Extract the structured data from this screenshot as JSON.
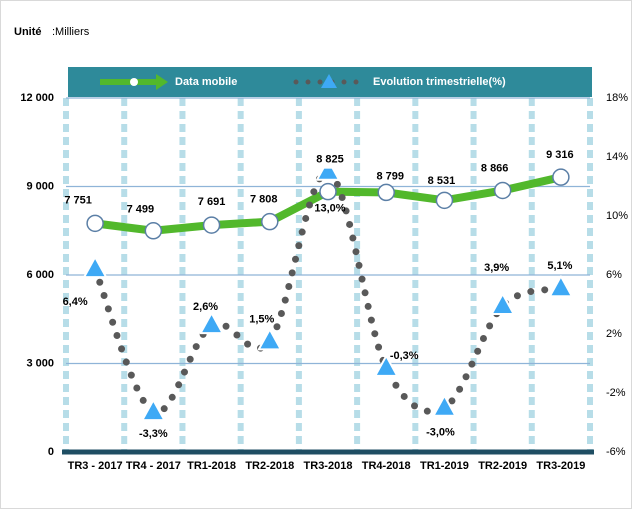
{
  "chart_data": {
    "type": "line",
    "unit_label": "Unité",
    "unit_text": ":Milliers",
    "categories": [
      "TR3 - 2017",
      "TR4 - 2017",
      "TR1-2018",
      "TR2-2018",
      "TR3-2018",
      "TR4-2018",
      "TR1-2019",
      "TR2-2019",
      "TR3-2019"
    ],
    "series": [
      {
        "name": "Data mobile",
        "color": "#52b82c",
        "values": [
          7751,
          7499,
          7691,
          7808,
          8825,
          8799,
          8531,
          8866,
          9316
        ],
        "value_labels": [
          "7 751",
          "7 499",
          "7 691",
          "7 808",
          "8 825",
          "8 799",
          "8 531",
          "8 866",
          "9 316"
        ]
      },
      {
        "name": "Evolution trimestrielle(%)",
        "color": "#3ea9f5",
        "axis": "y2",
        "values": [
          6.4,
          -3.3,
          2.6,
          1.5,
          13.0,
          -0.3,
          -3.0,
          3.9,
          5.1
        ],
        "value_labels": [
          "6,4%",
          "-3,3%",
          "2,6%",
          "1,5%",
          "13,0%",
          "-0,3%",
          "-3,0%",
          "3,9%",
          "5,1%"
        ]
      }
    ],
    "ylim": [
      0,
      12000
    ],
    "yticks": [
      0,
      {
        "value": 3000,
        "label": "3 000"
      },
      {
        "value": 6000,
        "label": "6 000"
      },
      {
        "value": 9000,
        "label": "9 000"
      },
      {
        "value": 12000,
        "label": "12 000"
      }
    ],
    "y2lim": [
      -6,
      18
    ],
    "y2ticks": [
      {
        "value": -6,
        "label": "-6%"
      },
      {
        "value": -2,
        "label": "-2%"
      },
      {
        "value": 2,
        "label": "2%"
      },
      {
        "value": 6,
        "label": "6%"
      },
      {
        "value": 10,
        "label": "10%"
      },
      {
        "value": 14,
        "label": "14%"
      },
      {
        "value": 18,
        "label": "18%"
      }
    ],
    "grid": true,
    "legend": "top"
  }
}
